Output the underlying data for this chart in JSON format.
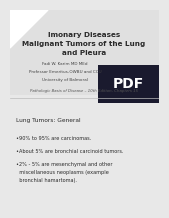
{
  "background_color": "#e8e8e8",
  "title_lines": [
    "lmonary Diseases",
    "Malignant Tumors of the Lung",
    "and Pleura"
  ],
  "author_lines": [
    "Fadi W. Karim MD MEd",
    "Professor Emeritus-OWBU and CCU",
    "University of Balmoral"
  ],
  "subtitle": "Pathologic Basis of Disease – 10th Edition- Chapters 15",
  "section_header": "Lung Tumors: General",
  "bullet_lines": [
    "•90% to 95% are carcinomas.",
    "•About 5% are bronchial carcinoid tumors.",
    "•2% - 5% are mesenchymal and other",
    "  miscellaneous neoplasms (example",
    "  bronchial hamartoma)."
  ],
  "pdf_bg_color": "#1a1a2e",
  "pdf_text_color": "#ffffff",
  "pdf_text": "PDF",
  "header_bg_color": "#e0e0e0",
  "white_color": "#ffffff",
  "text_color": "#2a2a2a",
  "author_color": "#444444",
  "subtitle_color": "#555555",
  "title_fontsize": 5.2,
  "author_fontsize": 3.0,
  "subtitle_fontsize": 2.8,
  "section_fontsize": 4.2,
  "bullet_fontsize": 3.6,
  "pdf_fontsize": 10
}
